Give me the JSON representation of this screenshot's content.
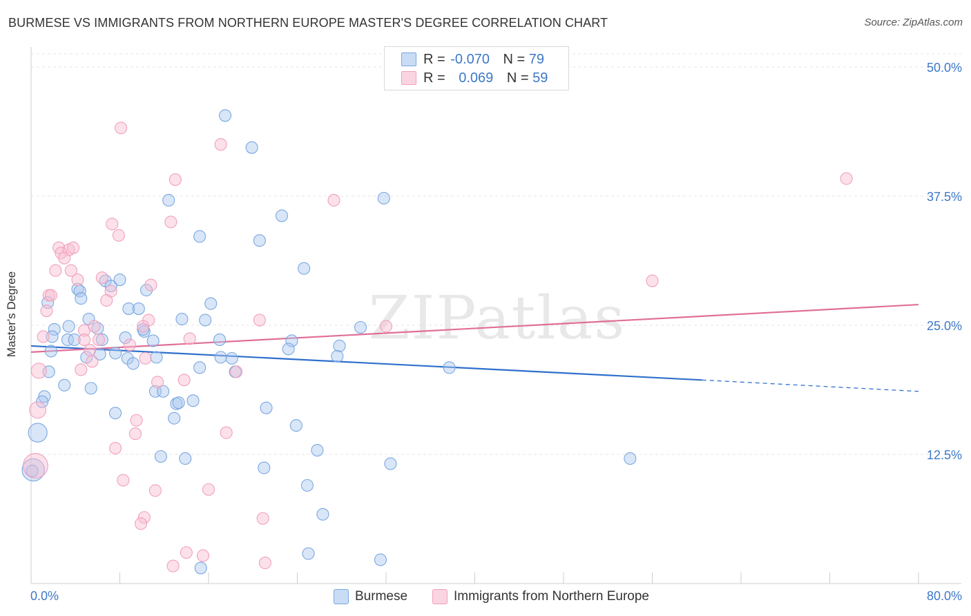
{
  "title": "BURMESE VS IMMIGRANTS FROM NORTHERN EUROPE MASTER'S DEGREE CORRELATION CHART",
  "source": "Source: ZipAtlas.com",
  "watermark": "ZIPatlas",
  "legend": {
    "rows": [
      {
        "r_label": "R =",
        "r_value": "-0.070",
        "n_label": "N =",
        "n_value": "79",
        "color": "#aac8f0"
      },
      {
        "r_label": "R =",
        "r_value": "0.069",
        "n_label": "N =",
        "n_value": "59",
        "color": "#f8bcd0"
      }
    ]
  },
  "bottom_legend": {
    "items": [
      {
        "label": "Burmese",
        "color": "#aac8f0"
      },
      {
        "label": "Immigrants from Northern Europe",
        "color": "#f8bcd0"
      }
    ]
  },
  "chart_data": {
    "type": "scatter",
    "title": "BURMESE VS IMMIGRANTS FROM NORTHERN EUROPE MASTER'S DEGREE CORRELATION CHART",
    "xlabel": "",
    "ylabel": "Master's Degree",
    "xlim": [
      0,
      80
    ],
    "ylim": [
      0,
      50
    ],
    "x_tick_labels": [
      "0.0%",
      "80.0%"
    ],
    "y_ticks": [
      12.5,
      25.0,
      37.5,
      50.0
    ],
    "y_tick_labels": [
      "12.5%",
      "25.0%",
      "37.5%",
      "50.0%"
    ],
    "grid": "horizontal dashed",
    "series": [
      {
        "name": "Burmese",
        "color": "#7aa7e0",
        "fill": "#aac8f0",
        "line_color": "#2f6fcc",
        "trend": {
          "x0": 0,
          "y0": 23.0,
          "x1": 60.5,
          "y1": 19.7,
          "dash_to_x": 80,
          "dash_to_y": 18.6
        },
        "points": [
          [
            17.5,
            45.3
          ],
          [
            19.9,
            42.2
          ],
          [
            12.4,
            37.1
          ],
          [
            31.8,
            37.3
          ],
          [
            22.6,
            35.6
          ],
          [
            15.2,
            33.6
          ],
          [
            20.6,
            33.2
          ],
          [
            24.6,
            30.5
          ],
          [
            4.2,
            28.5
          ],
          [
            4.4,
            28.3
          ],
          [
            6.7,
            29.3
          ],
          [
            7.2,
            28.8
          ],
          [
            8.0,
            29.4
          ],
          [
            10.4,
            28.4
          ],
          [
            4.5,
            27.6
          ],
          [
            1.5,
            27.2
          ],
          [
            8.8,
            26.6
          ],
          [
            9.7,
            26.6
          ],
          [
            13.6,
            25.6
          ],
          [
            15.7,
            25.5
          ],
          [
            16.2,
            27.1
          ],
          [
            29.7,
            24.8
          ],
          [
            2.1,
            24.6
          ],
          [
            3.4,
            24.9
          ],
          [
            5.2,
            25.6
          ],
          [
            6.0,
            24.7
          ],
          [
            10.2,
            24.4
          ],
          [
            10.1,
            24.6
          ],
          [
            8.5,
            23.8
          ],
          [
            1.9,
            23.9
          ],
          [
            3.3,
            23.6
          ],
          [
            3.9,
            23.6
          ],
          [
            6.4,
            23.6
          ],
          [
            11.0,
            23.5
          ],
          [
            17.0,
            23.6
          ],
          [
            23.5,
            23.5
          ],
          [
            27.8,
            23.0
          ],
          [
            1.8,
            22.5
          ],
          [
            5.0,
            21.9
          ],
          [
            6.2,
            22.2
          ],
          [
            7.6,
            22.3
          ],
          [
            8.7,
            21.8
          ],
          [
            9.2,
            21.3
          ],
          [
            11.3,
            21.9
          ],
          [
            17.1,
            21.9
          ],
          [
            18.1,
            21.8
          ],
          [
            23.2,
            22.7
          ],
          [
            27.6,
            22.0
          ],
          [
            37.7,
            20.9
          ],
          [
            1.6,
            20.5
          ],
          [
            15.2,
            20.9
          ],
          [
            18.4,
            20.5
          ],
          [
            3.0,
            19.2
          ],
          [
            5.4,
            18.9
          ],
          [
            11.2,
            18.6
          ],
          [
            11.9,
            18.6
          ],
          [
            1.2,
            18.1
          ],
          [
            1.0,
            17.6
          ],
          [
            13.1,
            17.4
          ],
          [
            13.3,
            17.5
          ],
          [
            14.6,
            17.7
          ],
          [
            21.2,
            17.0
          ],
          [
            7.6,
            16.5
          ],
          [
            12.9,
            16.0
          ],
          [
            23.9,
            15.3
          ],
          [
            0.6,
            14.6
          ],
          [
            25.8,
            12.9
          ],
          [
            11.7,
            12.3
          ],
          [
            13.9,
            12.1
          ],
          [
            54.0,
            12.1
          ],
          [
            32.4,
            11.6
          ],
          [
            21.0,
            11.2
          ],
          [
            0.2,
            11.0
          ],
          [
            24.9,
            9.5
          ],
          [
            26.3,
            6.7
          ],
          [
            25.0,
            2.9
          ],
          [
            31.5,
            2.3
          ],
          [
            15.3,
            1.5
          ],
          [
            0.1,
            10.9
          ]
        ],
        "sizes": [
          1,
          1,
          1,
          1,
          1,
          1,
          1,
          1,
          1,
          1,
          1,
          1,
          1,
          1,
          1,
          1,
          1,
          1,
          1,
          1,
          1,
          1,
          1,
          1,
          1,
          1,
          1,
          1,
          1,
          1,
          1,
          1,
          1,
          1,
          1,
          1,
          1,
          1,
          1,
          1,
          1,
          1,
          1,
          1,
          1,
          1,
          1,
          1,
          1,
          1,
          1,
          1,
          1,
          1,
          1,
          1,
          1,
          1,
          1,
          1,
          1,
          1,
          1,
          1,
          1,
          1.6,
          1,
          1,
          1,
          1,
          1,
          1,
          1.9,
          1,
          1,
          1,
          1,
          1,
          1
        ]
      },
      {
        "name": "Immigrants from Northern Europe",
        "color": "#f0a0bc",
        "fill": "#f8bcd0",
        "line_color": "#e06e98",
        "trend": {
          "x0": 0,
          "y0": 22.4,
          "x1": 80,
          "y1": 27.0
        },
        "points": [
          [
            8.1,
            44.1
          ],
          [
            17.1,
            42.5
          ],
          [
            13.0,
            39.1
          ],
          [
            73.5,
            39.2
          ],
          [
            27.3,
            37.1
          ],
          [
            7.3,
            34.8
          ],
          [
            12.6,
            35.0
          ],
          [
            7.9,
            33.7
          ],
          [
            2.5,
            32.5
          ],
          [
            3.4,
            32.3
          ],
          [
            3.8,
            32.5
          ],
          [
            2.7,
            32.0
          ],
          [
            3.0,
            31.5
          ],
          [
            2.2,
            30.3
          ],
          [
            3.6,
            30.3
          ],
          [
            4.2,
            29.4
          ],
          [
            6.4,
            29.6
          ],
          [
            10.8,
            28.9
          ],
          [
            56.0,
            29.3
          ],
          [
            1.6,
            27.9
          ],
          [
            1.8,
            27.9
          ],
          [
            7.2,
            28.3
          ],
          [
            6.8,
            27.4
          ],
          [
            1.4,
            26.4
          ],
          [
            10.6,
            25.5
          ],
          [
            20.6,
            25.5
          ],
          [
            32.0,
            24.9
          ],
          [
            4.8,
            24.5
          ],
          [
            5.7,
            24.9
          ],
          [
            10.1,
            24.9
          ],
          [
            1.1,
            23.9
          ],
          [
            4.8,
            23.6
          ],
          [
            6.1,
            23.6
          ],
          [
            14.3,
            23.7
          ],
          [
            8.9,
            23.1
          ],
          [
            5.3,
            22.6
          ],
          [
            5.5,
            21.5
          ],
          [
            10.3,
            21.8
          ],
          [
            0.7,
            20.6
          ],
          [
            4.5,
            20.7
          ],
          [
            18.5,
            20.5
          ],
          [
            11.4,
            19.5
          ],
          [
            13.8,
            19.7
          ],
          [
            0.6,
            16.8
          ],
          [
            9.5,
            15.8
          ],
          [
            17.6,
            14.6
          ],
          [
            9.4,
            14.5
          ],
          [
            7.6,
            13.1
          ],
          [
            0.4,
            11.4
          ],
          [
            8.3,
            10.0
          ],
          [
            11.2,
            9.0
          ],
          [
            16.0,
            9.1
          ],
          [
            10.2,
            6.4
          ],
          [
            9.9,
            5.8
          ],
          [
            20.9,
            6.3
          ],
          [
            14.0,
            3.0
          ],
          [
            15.5,
            2.7
          ],
          [
            21.1,
            2.0
          ],
          [
            12.8,
            1.7
          ]
        ],
        "sizes": [
          1,
          1,
          1,
          1,
          1,
          1,
          1,
          1,
          1,
          1,
          1,
          1,
          1,
          1,
          1,
          1,
          1,
          1,
          1,
          1,
          1,
          1,
          1,
          1,
          1,
          1,
          1,
          1,
          1,
          1,
          1,
          1,
          1,
          1,
          1,
          1,
          1,
          1,
          1.3,
          1,
          1,
          1,
          1,
          1.4,
          1,
          1,
          1,
          1,
          2.1,
          1,
          1,
          1,
          1,
          1,
          1,
          1,
          1,
          1,
          1
        ]
      }
    ]
  }
}
